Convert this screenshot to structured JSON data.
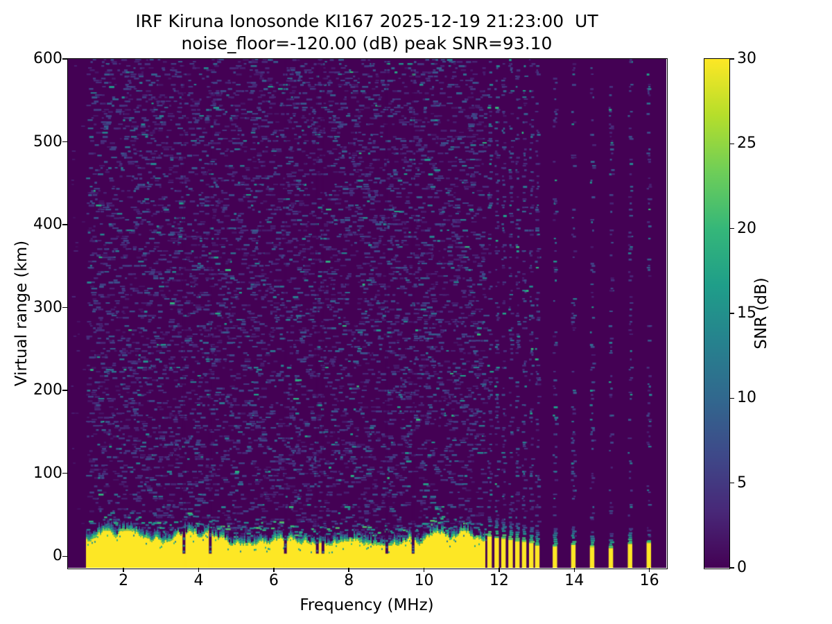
{
  "chart_data": {
    "type": "heatmap",
    "title": "IRF Kiruna Ionosonde KI167 2025-12-19 21:23:00  UT",
    "subtitle": "noise_floor=-120.00 (dB) peak SNR=93.10",
    "station": "IRF Kiruna Ionosonde KI167",
    "timestamp_ut": "2025-12-19 21:23:00",
    "noise_floor_db": -120.0,
    "peak_snr_db": 93.1,
    "xlabel": "Frequency (MHz)",
    "ylabel": "Virtual range (km)",
    "xlim": [
      0.52,
      16.45
    ],
    "ylim": [
      -14,
      600
    ],
    "xticks": [
      2,
      4,
      6,
      8,
      10,
      12,
      14,
      16
    ],
    "yticks": [
      0,
      100,
      200,
      300,
      400,
      500,
      600
    ],
    "grid": false,
    "colormap": "viridis",
    "colorbar": {
      "label": "SNR (dB)",
      "ticks": [
        0,
        5,
        10,
        15,
        20,
        25,
        30
      ],
      "vmin": 0,
      "vmax": 30
    },
    "background_snr_db": 0,
    "sweep": {
      "freq_start_mhz": 1.0,
      "freq_end_mhz": 16.4,
      "continuous_until_mhz": 11.6
    },
    "ground_clutter": {
      "freq_start_mhz": 1.0,
      "freq_end_mhz": 11.6,
      "yellow_top_km_min": 13,
      "yellow_top_km_max": 31,
      "speckle_top_km": 45,
      "notch_freqs_mhz": [
        3.6,
        4.3,
        6.3,
        7.15,
        7.3,
        9.0,
        9.7
      ]
    },
    "discrete_stripes": [
      {
        "f_mhz": 11.74,
        "yellow_top_km": 24,
        "speckle_top_km": 48
      },
      {
        "f_mhz": 11.93,
        "yellow_top_km": 22,
        "speckle_top_km": 46
      },
      {
        "f_mhz": 12.11,
        "yellow_top_km": 21,
        "speckle_top_km": 44
      },
      {
        "f_mhz": 12.3,
        "yellow_top_km": 20,
        "speckle_top_km": 42
      },
      {
        "f_mhz": 12.48,
        "yellow_top_km": 18,
        "speckle_top_km": 40
      },
      {
        "f_mhz": 12.66,
        "yellow_top_km": 17,
        "speckle_top_km": 38
      },
      {
        "f_mhz": 12.85,
        "yellow_top_km": 16,
        "speckle_top_km": 36
      },
      {
        "f_mhz": 13.01,
        "yellow_top_km": 13,
        "speckle_top_km": 32
      },
      {
        "f_mhz": 13.48,
        "yellow_top_km": 12,
        "speckle_top_km": 34
      },
      {
        "f_mhz": 13.97,
        "yellow_top_km": 14,
        "speckle_top_km": 36
      },
      {
        "f_mhz": 14.47,
        "yellow_top_km": 11,
        "speckle_top_km": 30
      },
      {
        "f_mhz": 14.97,
        "yellow_top_km": 10,
        "speckle_top_km": 28
      },
      {
        "f_mhz": 15.48,
        "yellow_top_km": 15,
        "speckle_top_km": 34
      },
      {
        "f_mhz": 15.98,
        "yellow_top_km": 16,
        "speckle_top_km": 32
      }
    ],
    "noise_seed": 1337,
    "viridis_stops": [
      "#440154",
      "#482878",
      "#3e4989",
      "#31688e",
      "#26828e",
      "#1f9e89",
      "#35b779",
      "#6ece58",
      "#b5de2b",
      "#fde725"
    ]
  }
}
